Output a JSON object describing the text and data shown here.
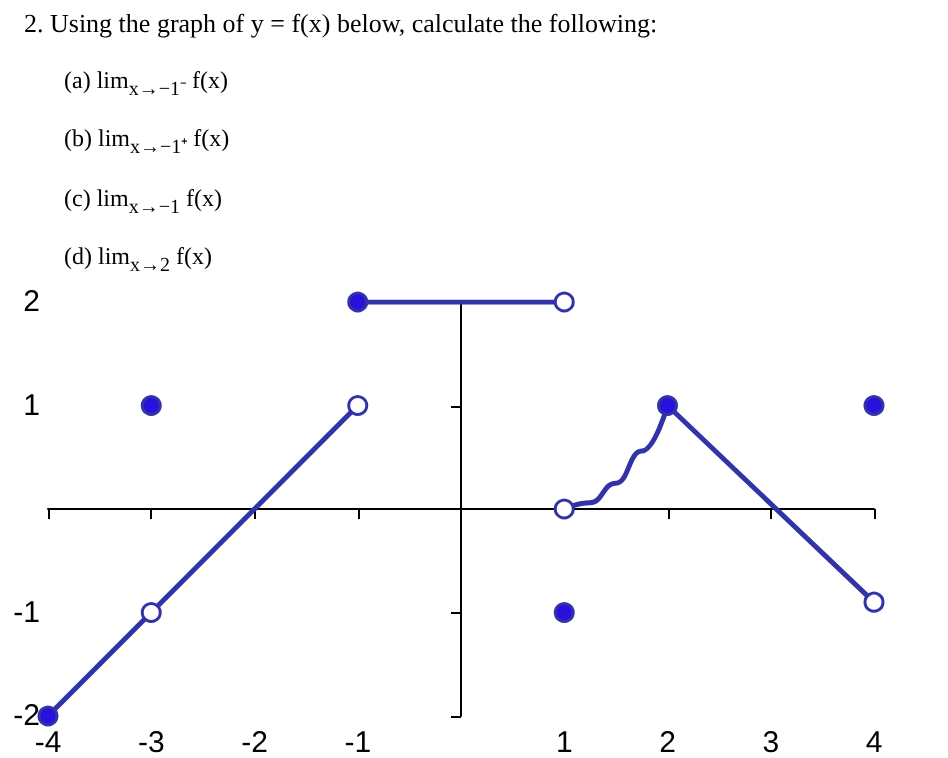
{
  "chart_data": {
    "type": "line",
    "title": "2. Using the graph of y = f(x) below, calculate the following:",
    "annotations": [
      "(a) lim$_{x→−1⁻}$ f(x)",
      "(b) lim$_{x→−1⁺}$ f(x)",
      "(c) lim$_{x→−1}$ f(x)",
      "(d) lim$_{x→2}$ f(x)"
    ],
    "xlim": [
      -4,
      4
    ],
    "xticks": [
      -4,
      -3,
      -2,
      -1,
      1,
      2,
      3,
      4
    ],
    "ylim": [
      -2,
      2
    ],
    "yticks": [
      -2,
      -1,
      1,
      2
    ],
    "grid": false,
    "line_style": "solid",
    "series": [
      {
        "x": [
          -4,
          -1
        ],
        "values": [
          -2,
          1
        ],
        "color": "#3333a8",
        "marker": "none"
      },
      {
        "x": [
          -1,
          1
        ],
        "values": [
          2,
          2
        ],
        "color": "#3333a8",
        "marker": "none"
      },
      {
        "x": [
          1,
          1.25,
          1.5,
          1.75,
          2
        ],
        "values": [
          0,
          0.06,
          0.25,
          0.56,
          1
        ],
        "color": "#3333a8",
        "marker": "none"
      },
      {
        "x": [
          2,
          4
        ],
        "values": [
          1,
          -0.9
        ],
        "color": "#3333a8",
        "marker": "none"
      },
      {
        "type": "scatter",
        "x": [
          -4,
          -3,
          -1,
          1,
          2,
          4
        ],
        "values": [
          -2,
          1,
          2,
          -1,
          1,
          1
        ],
        "color": "#2a10dd",
        "marker": "circle"
      },
      {
        "type": "scatter",
        "x": [
          -3,
          -1,
          1,
          1,
          4
        ],
        "values": [
          -1,
          1,
          2,
          0,
          -0.9
        ],
        "color": "#ffffff",
        "marker": "circle"
      }
    ]
  }
}
